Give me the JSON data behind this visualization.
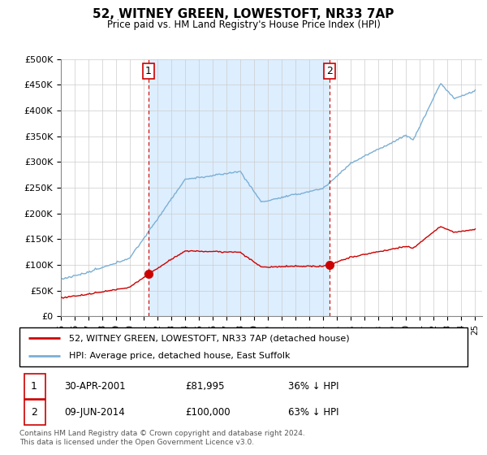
{
  "title": "52, WITNEY GREEN, LOWESTOFT, NR33 7AP",
  "subtitle": "Price paid vs. HM Land Registry's House Price Index (HPI)",
  "legend_line1": "52, WITNEY GREEN, LOWESTOFT, NR33 7AP (detached house)",
  "legend_line2": "HPI: Average price, detached house, East Suffolk",
  "annotation1_date": "30-APR-2001",
  "annotation1_price": "£81,995",
  "annotation1_hpi": "36% ↓ HPI",
  "annotation2_date": "09-JUN-2014",
  "annotation2_price": "£100,000",
  "annotation2_hpi": "63% ↓ HPI",
  "footer": "Contains HM Land Registry data © Crown copyright and database right 2024.\nThis data is licensed under the Open Government Licence v3.0.",
  "sale1_year": 2001.33,
  "sale1_price": 81995,
  "sale2_year": 2014.44,
  "sale2_price": 100000,
  "red_color": "#cc0000",
  "blue_color": "#7bafd4",
  "shade_color": "#ddeeff",
  "marker_color": "#cc0000",
  "dashed_color": "#cc0000",
  "ylim_max": 500000,
  "yticks": [
    0,
    50000,
    100000,
    150000,
    200000,
    250000,
    300000,
    350000,
    400000,
    450000,
    500000
  ],
  "xlim_min": 1995,
  "xlim_max": 2025.5
}
